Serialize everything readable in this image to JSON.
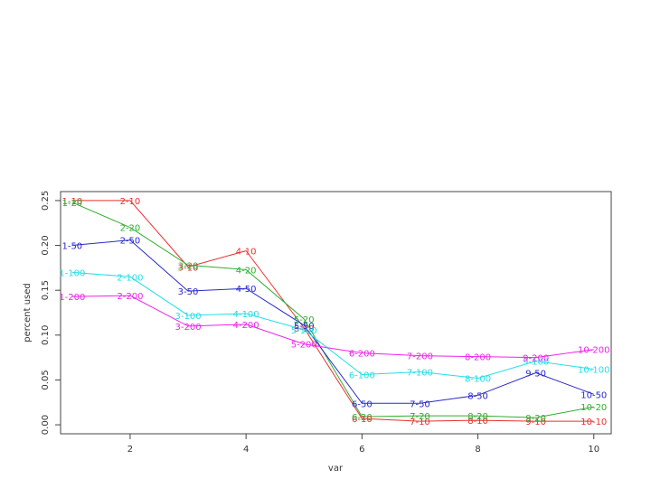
{
  "chart_data": {
    "type": "line",
    "xlabel": "var",
    "ylabel": "percent used",
    "xlim": [
      0.8,
      10.3
    ],
    "ylim": [
      -0.01,
      0.26
    ],
    "x_ticks": [
      {
        "v": 2,
        "label": "2"
      },
      {
        "v": 4,
        "label": "4"
      },
      {
        "v": 6,
        "label": "6"
      },
      {
        "v": 8,
        "label": "8"
      },
      {
        "v": 10,
        "label": "10"
      }
    ],
    "y_ticks": [
      {
        "v": 0.0,
        "label": "0.00"
      },
      {
        "v": 0.05,
        "label": "0.05"
      },
      {
        "v": 0.1,
        "label": "0.10"
      },
      {
        "v": 0.15,
        "label": "0.15"
      },
      {
        "v": 0.2,
        "label": "0.20"
      },
      {
        "v": 0.25,
        "label": "0.25"
      }
    ],
    "x": [
      1,
      2,
      3,
      4,
      5,
      6,
      7,
      8,
      9,
      10
    ],
    "series": [
      {
        "color": "#e8312f",
        "values": [
          0.25,
          0.25,
          0.176,
          0.194,
          0.108,
          0.007,
          0.004,
          0.005,
          0.004,
          0.004
        ],
        "labels": [
          "1-10",
          "2-10",
          "3-10",
          "4-10",
          "5-10",
          "6-10",
          "7-10",
          "8-10",
          "9-10",
          "10-10"
        ]
      },
      {
        "color": "#2fad2f",
        "values": [
          0.248,
          0.22,
          0.178,
          0.173,
          0.118,
          0.009,
          0.01,
          0.01,
          0.008,
          0.02
        ],
        "labels": [
          "1-20",
          "2-20",
          "3-20",
          "4-20",
          "5-20",
          "6-20",
          "7-20",
          "8-20",
          "9-20",
          "10-20"
        ]
      },
      {
        "color": "#2828cc",
        "values": [
          0.2,
          0.206,
          0.149,
          0.152,
          0.111,
          0.024,
          0.024,
          0.033,
          0.058,
          0.034
        ],
        "labels": [
          "1-50",
          "2-50",
          "3-50",
          "4-50",
          "5-50",
          "6-50",
          "7-50",
          "8-50",
          "9-50",
          "10-50"
        ]
      },
      {
        "color": "#22e0e8",
        "values": [
          0.17,
          0.165,
          0.122,
          0.124,
          0.106,
          0.056,
          0.059,
          0.052,
          0.071,
          0.062
        ],
        "labels": [
          "1-100",
          "2-100",
          "3-100",
          "4-100",
          "5-100",
          "6-100",
          "7-100",
          "8-100",
          "9-100",
          "10-100"
        ]
      },
      {
        "color": "#ee22ee",
        "values": [
          0.143,
          0.144,
          0.11,
          0.112,
          0.09,
          0.08,
          0.077,
          0.076,
          0.075,
          0.084
        ],
        "labels": [
          "1-200",
          "2-200",
          "3-200",
          "4-200",
          "5-200",
          "6-200",
          "7-200",
          "8-200",
          "9-200",
          "10-200"
        ]
      }
    ]
  }
}
